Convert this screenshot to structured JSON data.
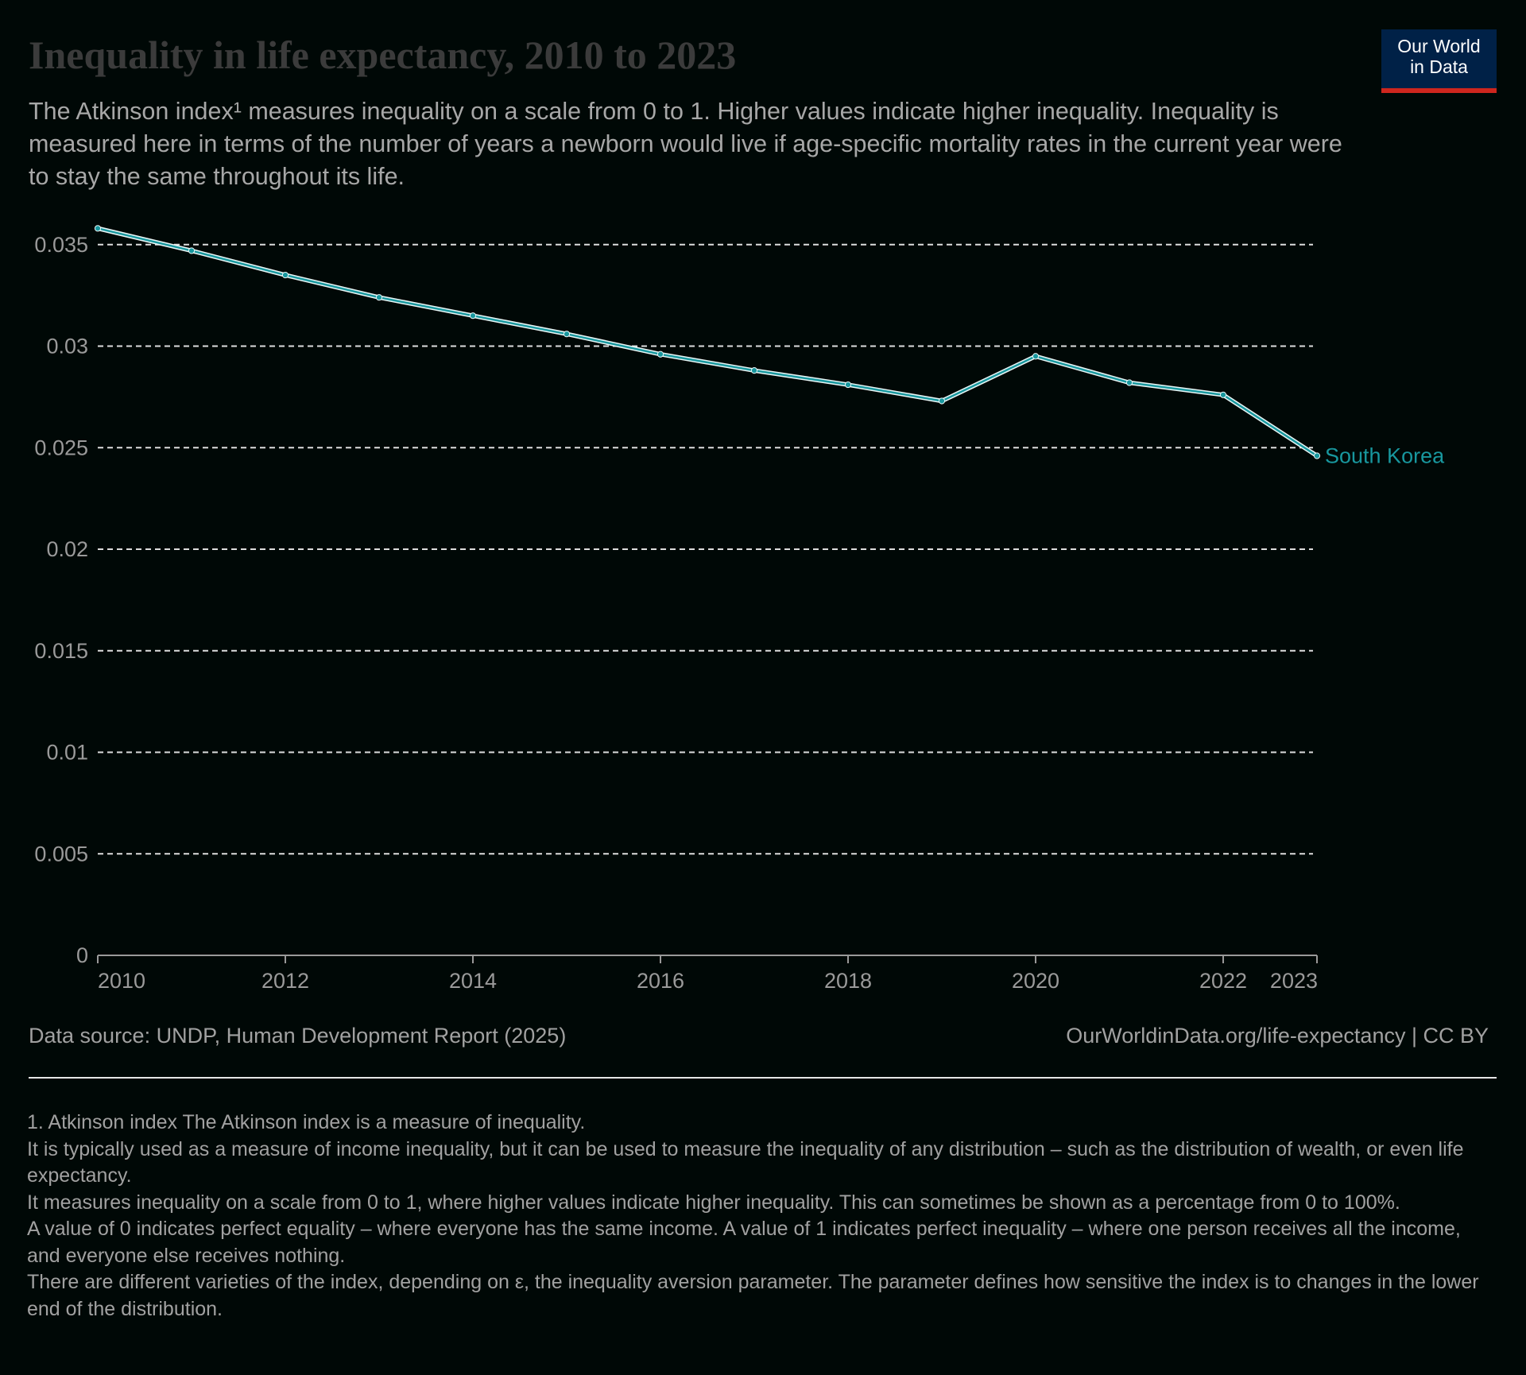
{
  "header": {
    "title": "Inequality in life expectancy, 2010 to 2023",
    "subtitle": "The Atkinson index¹ measures inequality on a scale from 0 to 1. Higher values indicate higher inequality. Inequality is measured here in terms of the number of years a newborn would live if age-specific mortality rates in the current year were to stay the same throughout its life.",
    "logo_line1": "Our World",
    "logo_line2": "in Data"
  },
  "chart_data": {
    "type": "line",
    "title": "Inequality in life expectancy, 2010 to 2023",
    "x": [
      2010,
      2011,
      2012,
      2013,
      2014,
      2015,
      2016,
      2017,
      2018,
      2019,
      2020,
      2021,
      2022,
      2023
    ],
    "series": [
      {
        "name": "South Korea",
        "color": "#18979e",
        "values": [
          0.0358,
          0.0347,
          0.0335,
          0.0324,
          0.0315,
          0.0306,
          0.0296,
          0.0288,
          0.0281,
          0.0273,
          0.0295,
          0.0282,
          0.0276,
          0.0246
        ]
      }
    ],
    "xlim": [
      2010,
      2023
    ],
    "ylim": [
      0,
      0.037
    ],
    "x_ticks": [
      "2010",
      "2012",
      "2014",
      "2016",
      "2018",
      "2020",
      "2022",
      "2023"
    ],
    "y_ticks": [
      "0",
      "0.005",
      "0.01",
      "0.015",
      "0.02",
      "0.025",
      "0.03",
      "0.035"
    ],
    "grid": "horizontal-dashed",
    "legend": "inline-label-right"
  },
  "footer": {
    "source": "Data source: UNDP, Human Development Report (2025)",
    "credit": "OurWorldinData.org/life-expectancy | CC BY",
    "footnotes": [
      "1. Atkinson index The Atkinson index is a measure of inequality.",
      "It is typically used as a measure of income inequality, but it can be used to measure the inequality of any distribution – such as the distribution of wealth, or even life expectancy.",
      "It measures inequality on a scale from 0 to 1, where higher values indicate higher inequality. This can sometimes be shown as a percentage from 0 to 100%.",
      "A value of 0 indicates perfect equality – where everyone has the same income. A value of 1 indicates perfect inequality – where one person receives all the income, and everyone else receives nothing.",
      "There are different varieties of the index, depending on ε, the inequality aversion parameter. The parameter defines how sensitive the index is to changes in the lower end of the distribution."
    ]
  }
}
